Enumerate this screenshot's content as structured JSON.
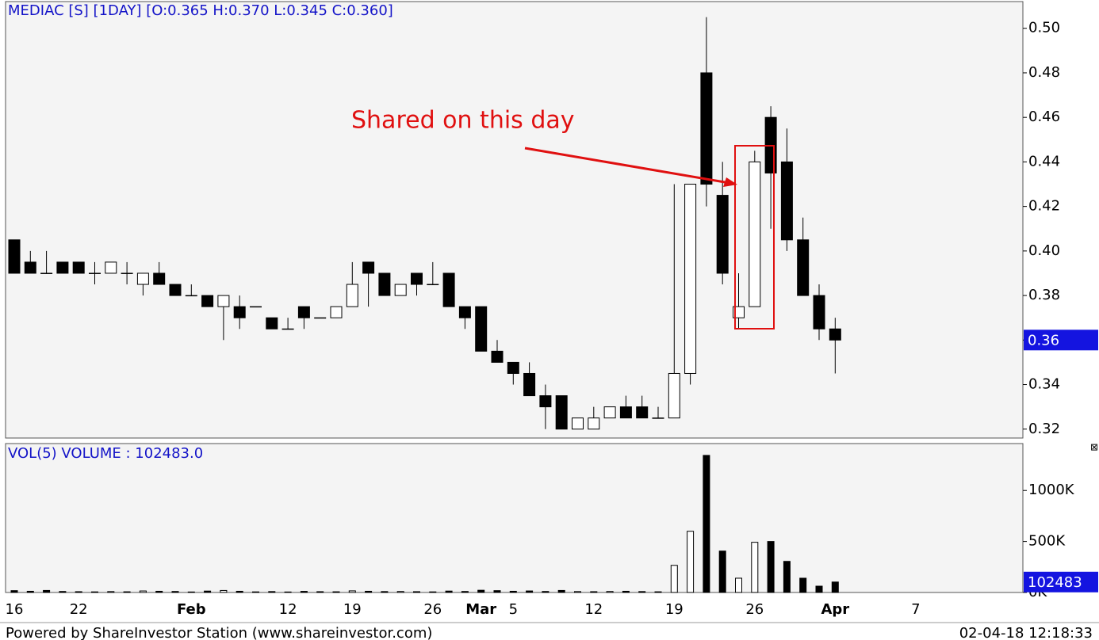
{
  "chart_data": [
    {
      "type": "candlestick",
      "title": "MEDIAC [S] [1DAY] [O:0.365 H:0.370 L:0.345 C:0.360]",
      "annotation": "Shared on this day",
      "categories": [
        "16",
        null,
        null,
        null,
        "22",
        null,
        null,
        null,
        null,
        null,
        null,
        "Feb",
        null,
        null,
        null,
        null,
        null,
        "12",
        null,
        null,
        null,
        "19",
        null,
        null,
        null,
        null,
        "26",
        null,
        null,
        "Mar",
        null,
        "5",
        null,
        null,
        null,
        null,
        "12",
        null,
        null,
        null,
        null,
        "19",
        null,
        null,
        null,
        null,
        "26",
        null,
        null,
        null,
        null,
        "Apr",
        null,
        null,
        null,
        null,
        "7"
      ],
      "open": [
        0.405,
        0.395,
        0.39,
        0.395,
        0.395,
        0.39,
        0.39,
        0.39,
        0.385,
        0.39,
        0.385,
        0.38,
        0.38,
        0.375,
        0.375,
        0.375,
        0.37,
        0.365,
        0.375,
        0.37,
        0.37,
        0.375,
        0.395,
        0.39,
        0.38,
        0.39,
        0.385,
        0.39,
        0.375,
        0.375,
        0.355,
        0.35,
        0.345,
        0.335,
        0.335,
        0.32,
        0.32,
        0.325,
        0.33,
        0.33,
        0.325,
        0.325,
        0.345,
        0.48,
        0.425,
        0.37,
        0.375,
        0.46,
        0.44,
        0.405,
        0.38,
        0.365,
        null,
        null,
        null,
        null,
        null
      ],
      "high": [
        0.405,
        0.4,
        0.4,
        0.395,
        0.395,
        0.395,
        0.395,
        0.395,
        0.39,
        0.395,
        0.385,
        0.385,
        0.38,
        0.38,
        0.38,
        0.375,
        0.37,
        0.37,
        0.375,
        0.37,
        0.375,
        0.395,
        0.395,
        0.39,
        0.385,
        0.39,
        0.395,
        0.39,
        0.375,
        0.375,
        0.36,
        0.35,
        0.35,
        0.34,
        0.335,
        0.325,
        0.33,
        0.33,
        0.335,
        0.335,
        0.33,
        0.43,
        0.43,
        0.505,
        0.44,
        0.39,
        0.445,
        0.465,
        0.455,
        0.415,
        0.385,
        0.37,
        null,
        null,
        null,
        null,
        null
      ],
      "low": [
        0.39,
        0.39,
        0.39,
        0.39,
        0.39,
        0.385,
        0.39,
        0.385,
        0.38,
        0.385,
        0.38,
        0.38,
        0.375,
        0.36,
        0.365,
        0.375,
        0.365,
        0.365,
        0.365,
        0.37,
        0.37,
        0.375,
        0.375,
        0.38,
        0.38,
        0.38,
        0.385,
        0.375,
        0.365,
        0.355,
        0.35,
        0.34,
        0.335,
        0.32,
        0.32,
        0.32,
        0.32,
        0.325,
        0.325,
        0.325,
        0.325,
        0.325,
        0.34,
        0.42,
        0.385,
        0.365,
        0.375,
        0.41,
        0.4,
        0.38,
        0.36,
        0.345,
        null,
        null,
        null,
        null,
        null
      ],
      "close": [
        0.39,
        0.39,
        0.39,
        0.39,
        0.39,
        0.39,
        0.395,
        0.39,
        0.39,
        0.385,
        0.38,
        0.38,
        0.375,
        0.38,
        0.37,
        0.375,
        0.365,
        0.365,
        0.37,
        0.37,
        0.375,
        0.385,
        0.39,
        0.38,
        0.385,
        0.385,
        0.385,
        0.375,
        0.37,
        0.355,
        0.35,
        0.345,
        0.335,
        0.33,
        0.32,
        0.325,
        0.325,
        0.33,
        0.325,
        0.325,
        0.325,
        0.345,
        0.43,
        0.43,
        0.39,
        0.375,
        0.44,
        0.435,
        0.405,
        0.38,
        0.365,
        0.36,
        null,
        null,
        null,
        null,
        null
      ],
      "up_color": "#ffffff",
      "down_color": "#000000",
      "ylim": [
        0.316,
        0.512
      ],
      "yticks": [
        0.32,
        0.34,
        0.36,
        0.38,
        {
          "value": 0.4,
          "label": "0.40"
        },
        0.42,
        0.44,
        0.46,
        0.48,
        {
          "value": 0.5,
          "label": "0.50"
        }
      ],
      "grid": false,
      "last_value": 0.36
    },
    {
      "type": "bar",
      "title": "VOL(5)  VOLUME : 102483.0",
      "values": [
        18000,
        12000,
        20000,
        10000,
        8000,
        6000,
        9000,
        7000,
        15000,
        12000,
        10000,
        5000,
        14000,
        20000,
        12000,
        6000,
        9000,
        5000,
        11000,
        8000,
        7000,
        16000,
        12000,
        9000,
        10000,
        8000,
        6000,
        14000,
        10000,
        22000,
        18000,
        12000,
        15000,
        10000,
        20000,
        9000,
        8000,
        10000,
        12000,
        9000,
        7000,
        266000,
        600000,
        1344000,
        406000,
        140000,
        492000,
        500000,
        305000,
        140000,
        62000,
        102483,
        null,
        null,
        null,
        null,
        null
      ],
      "ylim": [
        0,
        1460000
      ],
      "yticks": [
        {
          "value": 0,
          "label": "0K"
        },
        {
          "value": 500000,
          "label": "500K"
        },
        {
          "value": 1000000,
          "label": "1000K"
        }
      ],
      "grid": false,
      "last_value": 102483
    }
  ],
  "source": "Powered by ShareInvestor Station (www.shareinvestor.com)",
  "timestamp": "02-04-18 12:18:33"
}
